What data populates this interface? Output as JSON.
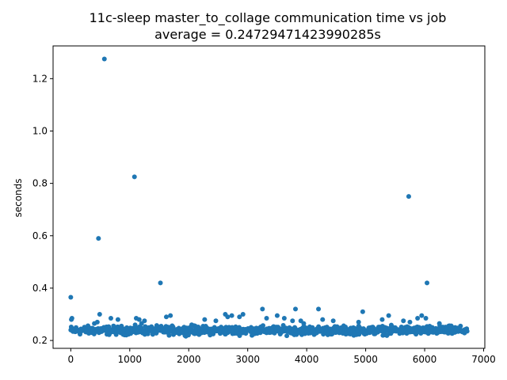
{
  "chart_data": {
    "type": "scatter",
    "title": "11c-sleep master_to_collage communication time vs job",
    "subtitle": "average = 0.24729471423990285s",
    "xlabel": "",
    "ylabel": "seconds",
    "xlim": [
      -300,
      7020
    ],
    "ylim": [
      0.17,
      1.325
    ],
    "xticks": [
      0,
      1000,
      2000,
      3000,
      4000,
      5000,
      6000,
      7000
    ],
    "yticks": [
      0.2,
      0.4,
      0.6,
      0.8,
      1.0,
      1.2
    ],
    "xtick_labels": [
      "0",
      "1000",
      "2000",
      "3000",
      "4000",
      "5000",
      "6000",
      "7000"
    ],
    "ytick_labels": [
      "0.2",
      "0.4",
      "0.6",
      "0.8",
      "1.0",
      "1.2"
    ],
    "grid": false,
    "marker_color": "#1f77b4",
    "series": [
      {
        "name": "",
        "points": [
          [
            0,
            0.365
          ],
          [
            10,
            0.28
          ],
          [
            20,
            0.285
          ],
          [
            470,
            0.59
          ],
          [
            490,
            0.3
          ],
          [
            570,
            1.275
          ],
          [
            1080,
            0.825
          ],
          [
            1520,
            0.42
          ],
          [
            5730,
            0.75
          ],
          [
            6040,
            0.42
          ],
          [
            400,
            0.265
          ],
          [
            450,
            0.27
          ],
          [
            680,
            0.285
          ],
          [
            800,
            0.28
          ],
          [
            1110,
            0.285
          ],
          [
            1160,
            0.28
          ],
          [
            1250,
            0.275
          ],
          [
            1620,
            0.29
          ],
          [
            1690,
            0.295
          ],
          [
            2270,
            0.28
          ],
          [
            2460,
            0.275
          ],
          [
            2620,
            0.3
          ],
          [
            2660,
            0.29
          ],
          [
            2730,
            0.295
          ],
          [
            2860,
            0.29
          ],
          [
            2920,
            0.3
          ],
          [
            3250,
            0.32
          ],
          [
            3320,
            0.285
          ],
          [
            3500,
            0.295
          ],
          [
            3620,
            0.285
          ],
          [
            3760,
            0.275
          ],
          [
            3810,
            0.32
          ],
          [
            3900,
            0.275
          ],
          [
            4200,
            0.32
          ],
          [
            4270,
            0.28
          ],
          [
            4450,
            0.275
          ],
          [
            4880,
            0.27
          ],
          [
            4950,
            0.31
          ],
          [
            5280,
            0.28
          ],
          [
            5390,
            0.295
          ],
          [
            5640,
            0.275
          ],
          [
            5750,
            0.27
          ],
          [
            5880,
            0.285
          ],
          [
            5950,
            0.295
          ],
          [
            6020,
            0.285
          ],
          [
            6250,
            0.265
          ],
          [
            3950,
            0.265
          ],
          [
            2050,
            0.26
          ],
          [
            1200,
            0.265
          ]
        ],
        "dense_band": {
          "x_start": 0,
          "x_end": 6720,
          "y_min": 0.215,
          "y_max": 0.262,
          "count": 900
        }
      }
    ]
  }
}
